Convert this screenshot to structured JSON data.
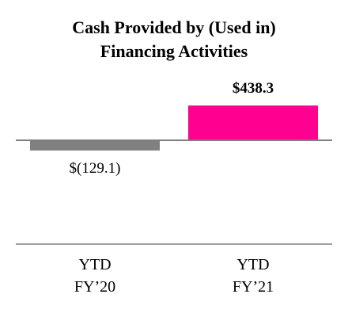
{
  "chart_data": {
    "type": "bar",
    "title": "Cash Provided by (Used in)\nFinancing Activities",
    "categories": [
      "YTD\nFY’20",
      "YTD\nFY’21"
    ],
    "values": [
      -129.1,
      438.3
    ],
    "value_labels": [
      "$(129.1)",
      "$438.3"
    ],
    "colors": [
      "#808080",
      "#ff0090"
    ]
  }
}
